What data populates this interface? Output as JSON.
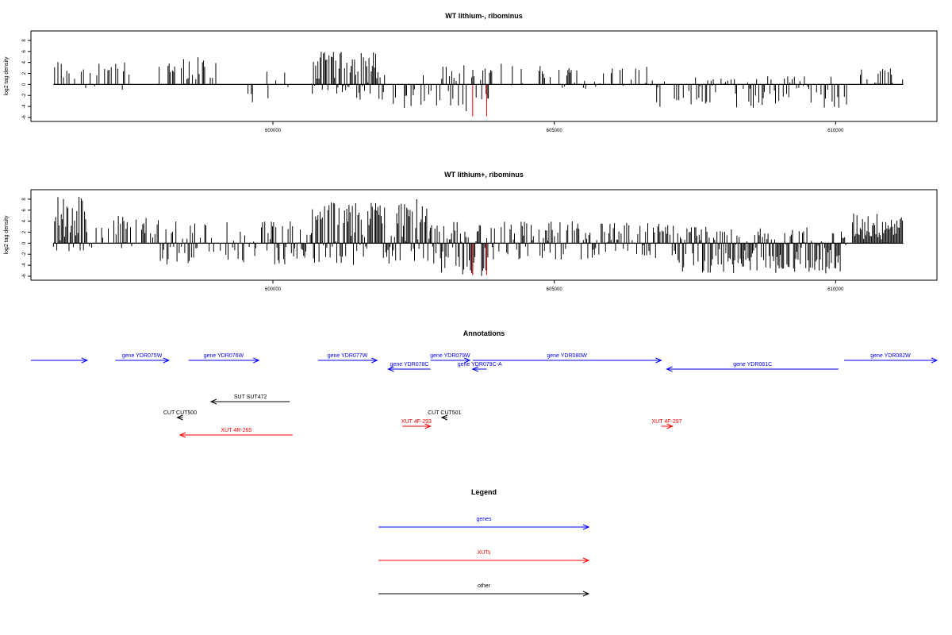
{
  "chart_data": [
    {
      "type": "bar",
      "title": "WT lithium-, ribominus",
      "ylabel": "log2 tag density",
      "xlabel": "",
      "ylim": [
        -6,
        9
      ],
      "xlim": [
        595700,
        611800
      ],
      "yticks": [
        "-6",
        "-4",
        "-2",
        "0",
        "2",
        "4",
        "6",
        "8"
      ],
      "xticks": [
        {
          "value": 600000,
          "label": "600000"
        },
        {
          "value": 605000,
          "label": "605000"
        },
        {
          "value": 610000,
          "label": "610000"
        }
      ],
      "grid": false,
      "series": [
        {
          "color": "#000000",
          "segments": [
            {
              "from": 596100,
              "to": 597500,
              "min": -1,
              "max": 4.5,
              "density": 0.35
            },
            {
              "from": 597900,
              "to": 599000,
              "min": 0,
              "max": 5,
              "density": 0.45
            },
            {
              "from": 599300,
              "to": 600300,
              "min": -3.5,
              "max": 2.5,
              "density": 0.2
            },
            {
              "from": 600700,
              "to": 602000,
              "min": -3,
              "max": 6,
              "density": 1.0
            },
            {
              "from": 602000,
              "to": 603000,
              "min": -4.5,
              "max": 2,
              "density": 0.35
            },
            {
              "from": 603000,
              "to": 603900,
              "min": -5,
              "max": 3.5,
              "density": 0.65
            },
            {
              "from": 603900,
              "to": 606800,
              "min": -1,
              "max": 4,
              "density": 0.25
            },
            {
              "from": 606800,
              "to": 610200,
              "min": -4.5,
              "max": 1.5,
              "density": 0.5
            },
            {
              "from": 610400,
              "to": 611200,
              "min": 0,
              "max": 3,
              "density": 0.25
            }
          ]
        },
        {
          "color": "#ff0000",
          "spikes": [
            {
              "x": 603550,
              "y": -5.8
            },
            {
              "x": 603800,
              "y": -5.8
            }
          ]
        }
      ]
    },
    {
      "type": "bar",
      "title": "WT lithium+, ribominus",
      "ylabel": "log2 tag density",
      "xlabel": "",
      "ylim": [
        -6,
        9
      ],
      "xlim": [
        595700,
        611800
      ],
      "yticks": [
        "-6",
        "-4",
        "-2",
        "0",
        "2",
        "4",
        "6",
        "8"
      ],
      "xticks": [
        {
          "value": 600000,
          "label": "600000"
        },
        {
          "value": 605000,
          "label": "605000"
        },
        {
          "value": 610000,
          "label": "610000"
        }
      ],
      "grid": false,
      "series": [
        {
          "color": "#000000",
          "segments": [
            {
              "from": 596100,
              "to": 596700,
              "min": -1.5,
              "max": 8.5,
              "density": 1.0
            },
            {
              "from": 596700,
              "to": 598000,
              "min": -1,
              "max": 5,
              "density": 0.6
            },
            {
              "from": 598000,
              "to": 600700,
              "min": -4,
              "max": 4,
              "density": 0.6
            },
            {
              "from": 600700,
              "to": 602800,
              "min": -4,
              "max": 8,
              "density": 1.0
            },
            {
              "from": 602800,
              "to": 603800,
              "min": -6,
              "max": 4,
              "density": 1.0
            },
            {
              "from": 603800,
              "to": 607200,
              "min": -3,
              "max": 4,
              "density": 0.7
            },
            {
              "from": 607200,
              "to": 610200,
              "min": -5.5,
              "max": 3,
              "density": 1.0
            },
            {
              "from": 610300,
              "to": 611200,
              "min": 0,
              "max": 5.5,
              "density": 1.0
            }
          ]
        },
        {
          "color": "#ff0000",
          "spikes": [
            {
              "x": 603550,
              "y": -5.8
            },
            {
              "x": 603800,
              "y": -5.8
            }
          ]
        }
      ]
    }
  ],
  "annotations": {
    "title": "Annotations",
    "features": [
      {
        "label": "",
        "label_full": "?",
        "color": "#0000ff",
        "start": 595700,
        "end": 596700,
        "strand": "+",
        "row": 0,
        "label_at": "left"
      },
      {
        "label": "gene YDR075W",
        "color": "#0000ff",
        "start": 597200,
        "end": 598150,
        "strand": "+",
        "row": 0
      },
      {
        "label": "gene YDR076W",
        "color": "#0000ff",
        "start": 598500,
        "end": 599750,
        "strand": "+",
        "row": 0
      },
      {
        "label": "gene YDR077W",
        "color": "#0000ff",
        "start": 600800,
        "end": 601850,
        "strand": "+",
        "row": 0
      },
      {
        "label": "gene YDR078C",
        "color": "#0000ff",
        "start": 602050,
        "end": 602800,
        "strand": "-",
        "row": 1
      },
      {
        "label": "gene YDR079W",
        "color": "#0000ff",
        "start": 602800,
        "end": 603500,
        "strand": "+",
        "row": 0
      },
      {
        "label": "gene YDR079C-A",
        "color": "#0000ff",
        "start": 603550,
        "end": 603800,
        "strand": "-",
        "row": 1
      },
      {
        "label": "gene YDR080W",
        "color": "#0000ff",
        "start": 603550,
        "end": 606900,
        "strand": "+",
        "row": 0
      },
      {
        "label": "gene YDR081C",
        "color": "#0000ff",
        "start": 607000,
        "end": 610050,
        "strand": "-",
        "row": 1
      },
      {
        "label": "gene YDR082W",
        "color": "#0000ff",
        "start": 610150,
        "end": 611800,
        "strand": "+",
        "row": 0
      },
      {
        "label": "SUT SUT472",
        "color": "#000000",
        "start": 598900,
        "end": 600300,
        "strand": "-",
        "row": 4
      },
      {
        "label": "CUT CUT500",
        "color": "#000000",
        "start": 598300,
        "end": 598400,
        "strand": "-",
        "row": 6
      },
      {
        "label": "CUT CUT501",
        "color": "#000000",
        "start": 603000,
        "end": 603100,
        "strand": "-",
        "row": 6
      },
      {
        "label": "XUT 4R-265",
        "color": "#ff0000",
        "start": 598350,
        "end": 600350,
        "strand": "-",
        "row": 8
      },
      {
        "label": "XUT 4F-293",
        "color": "#ff0000",
        "start": 602300,
        "end": 602800,
        "strand": "+",
        "row": 7
      },
      {
        "label": "XUT 4F-297",
        "color": "#ff0000",
        "start": 606900,
        "end": 607100,
        "strand": "+",
        "row": 7
      }
    ]
  },
  "legend": {
    "title": "Legend",
    "items": [
      {
        "label": "genes",
        "color": "#0000ff"
      },
      {
        "label": "XUTs",
        "color": "#ff0000"
      },
      {
        "label": "other",
        "color": "#000000"
      }
    ]
  }
}
